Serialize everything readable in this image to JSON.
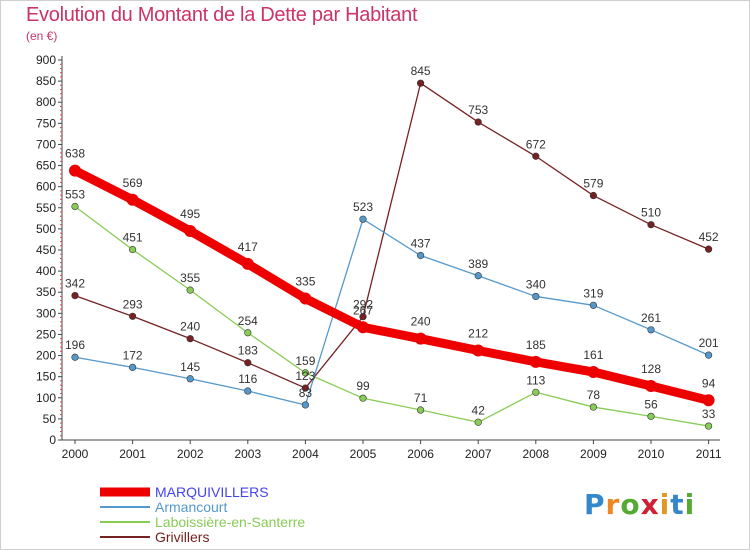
{
  "title": "Evolution du Montant de la Dette par Habitant",
  "subtitle": "(en €)",
  "logo": {
    "text": "Proxiti",
    "colors": [
      "#3388cc",
      "#ee8822",
      "#55aa33",
      "#cc2233",
      "#dd9922",
      "#3388cc",
      "#55aa33"
    ]
  },
  "chart_data": {
    "type": "line",
    "title": "Evolution du Montant de la Dette par Habitant",
    "ylabel": "(en €)",
    "xlabel": "",
    "categories": [
      "2000",
      "2001",
      "2002",
      "2003",
      "2004",
      "2005",
      "2006",
      "2007",
      "2008",
      "2009",
      "2010",
      "2011"
    ],
    "ylim": [
      0,
      900
    ],
    "yticks": [
      "0",
      "50",
      "100",
      "150",
      "200",
      "250",
      "300",
      "350",
      "400",
      "450",
      "500",
      "550",
      "600",
      "650",
      "700",
      "750",
      "800",
      "850",
      "900"
    ],
    "grid": false,
    "legend": "bottom-left",
    "series": [
      {
        "name": "MARQUIVILLERS",
        "color": "#ee0000",
        "values": [
          638,
          569,
          495,
          417,
          335,
          267,
          240,
          212,
          185,
          161,
          128,
          94
        ],
        "labels": [
          "638",
          "569",
          "495",
          "417",
          "335",
          "267",
          "240",
          "212",
          "185",
          "161",
          "128",
          "94"
        ]
      },
      {
        "name": "Armancourt",
        "color": "#5599cc",
        "values": [
          196,
          172,
          145,
          116,
          83,
          523,
          437,
          389,
          340,
          319,
          261,
          201
        ],
        "labels": [
          "196",
          "172",
          "145",
          "116",
          "83",
          "523",
          "437",
          "389",
          "340",
          "319",
          "261",
          "201"
        ]
      },
      {
        "name": "Laboissière-en-Santerre",
        "color": "#88cc55",
        "values": [
          553,
          451,
          355,
          254,
          159,
          99,
          71,
          42,
          113,
          78,
          56,
          33
        ],
        "labels": [
          "553",
          "451",
          "355",
          "254",
          "159",
          "99",
          "71",
          "42",
          "113",
          "78",
          "56",
          "33"
        ]
      },
      {
        "name": "Grivillers",
        "color": "#772222",
        "values": [
          342,
          293,
          240,
          183,
          123,
          292,
          845,
          753,
          672,
          579,
          510,
          452
        ],
        "labels": [
          "342",
          "293",
          "240",
          "183",
          "123",
          "292",
          "845",
          "753",
          "672",
          "579",
          "510",
          "452"
        ]
      }
    ]
  }
}
